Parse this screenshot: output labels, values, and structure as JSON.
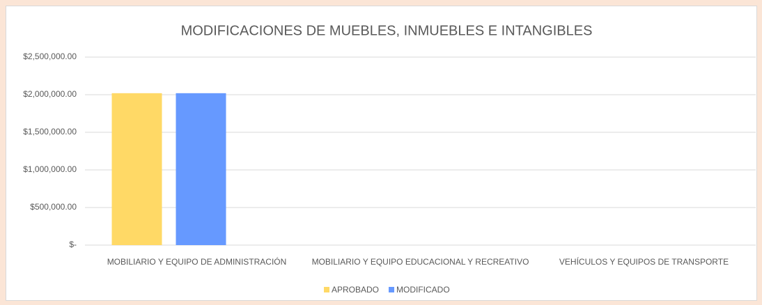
{
  "chart_data": {
    "type": "bar",
    "title": "MODIFICACIONES DE MUEBLES, INMUEBLES E INTANGIBLES",
    "categories": [
      "MOBILIARIO Y EQUIPO DE ADMINISTRACIÓN",
      "MOBILIARIO Y EQUIPO EDUCACIONAL Y RECREATIVO",
      "VEHÍCULOS Y EQUIPOS DE TRANSPORTE"
    ],
    "series": [
      {
        "name": "APROBADO",
        "color": "#ffd966",
        "values": [
          2020000,
          0,
          0
        ]
      },
      {
        "name": "MODIFICADO",
        "color": "#6699ff",
        "values": [
          2020000,
          0,
          0
        ]
      }
    ],
    "ylim": [
      0,
      2500000
    ],
    "yticks": [
      {
        "value": 0,
        "label": "$-"
      },
      {
        "value": 500000,
        "label": "$500,000.00"
      },
      {
        "value": 1000000,
        "label": "$1,000,000.00"
      },
      {
        "value": 1500000,
        "label": "$1,500,000.00"
      },
      {
        "value": 2000000,
        "label": "$2,000,000.00"
      },
      {
        "value": 2500000,
        "label": "$2,500,000.00"
      }
    ],
    "grid": true,
    "legend": "bottom"
  }
}
